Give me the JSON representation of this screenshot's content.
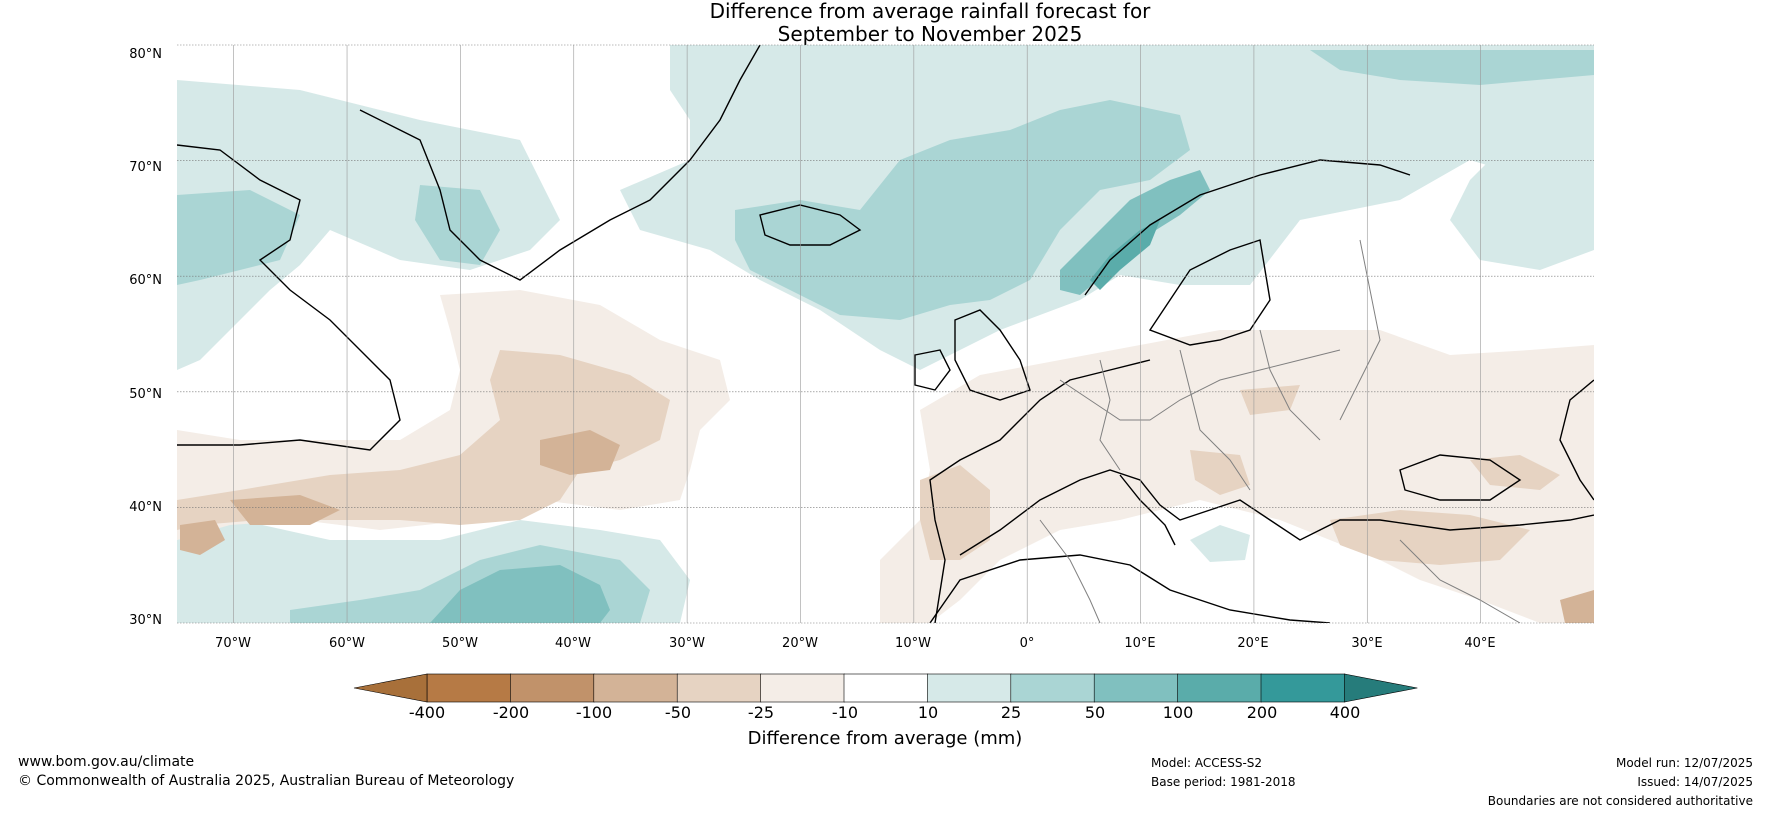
{
  "title": {
    "line1": "Difference from average rainfall forecast for",
    "line2": "September to November 2025"
  },
  "map": {
    "extent_lon": [
      -75,
      50
    ],
    "extent_lat": [
      30,
      80
    ],
    "lat_ticks": [
      {
        "value": 80,
        "label": "80°N"
      },
      {
        "value": 70,
        "label": "70°N"
      },
      {
        "value": 60,
        "label": "60°N"
      },
      {
        "value": 50,
        "label": "50°N"
      },
      {
        "value": 40,
        "label": "40°N"
      },
      {
        "value": 30,
        "label": "30°N"
      }
    ],
    "lon_ticks": [
      {
        "value": -70,
        "label": "70°W"
      },
      {
        "value": -60,
        "label": "60°W"
      },
      {
        "value": -50,
        "label": "50°W"
      },
      {
        "value": -40,
        "label": "40°W"
      },
      {
        "value": -30,
        "label": "30°W"
      },
      {
        "value": -20,
        "label": "20°W"
      },
      {
        "value": -10,
        "label": "10°W"
      },
      {
        "value": 0,
        "label": "0°"
      },
      {
        "value": 10,
        "label": "10°E"
      },
      {
        "value": 20,
        "label": "20°E"
      },
      {
        "value": 30,
        "label": "30°E"
      },
      {
        "value": 40,
        "label": "40°E"
      }
    ]
  },
  "legend": {
    "label": "Difference from average (mm)",
    "ticks": [
      "-400",
      "-200",
      "-100",
      "-50",
      "-25",
      "-10",
      "10",
      "25",
      "50",
      "100",
      "200",
      "400"
    ],
    "colors": [
      "#a8703a",
      "#b67a45",
      "#c1926a",
      "#d3b397",
      "#e6d3c2",
      "#f4ede7",
      "#ffffff",
      "#d6e9e8",
      "#aad5d4",
      "#80c0bf",
      "#5aacaa",
      "#34999a",
      "#267c7b"
    ]
  },
  "footer": {
    "website": "www.bom.gov.au/climate",
    "copyright": "© Commonwealth of Australia 2025, Australian Bureau of Meteorology",
    "model": "Model: ACCESS-S2",
    "base_period": "Base period: 1981-2018",
    "model_run": "Model run: 12/07/2025",
    "issued": "Issued: 14/07/2025",
    "disclaimer": "Boundaries are not considered authoritative"
  }
}
